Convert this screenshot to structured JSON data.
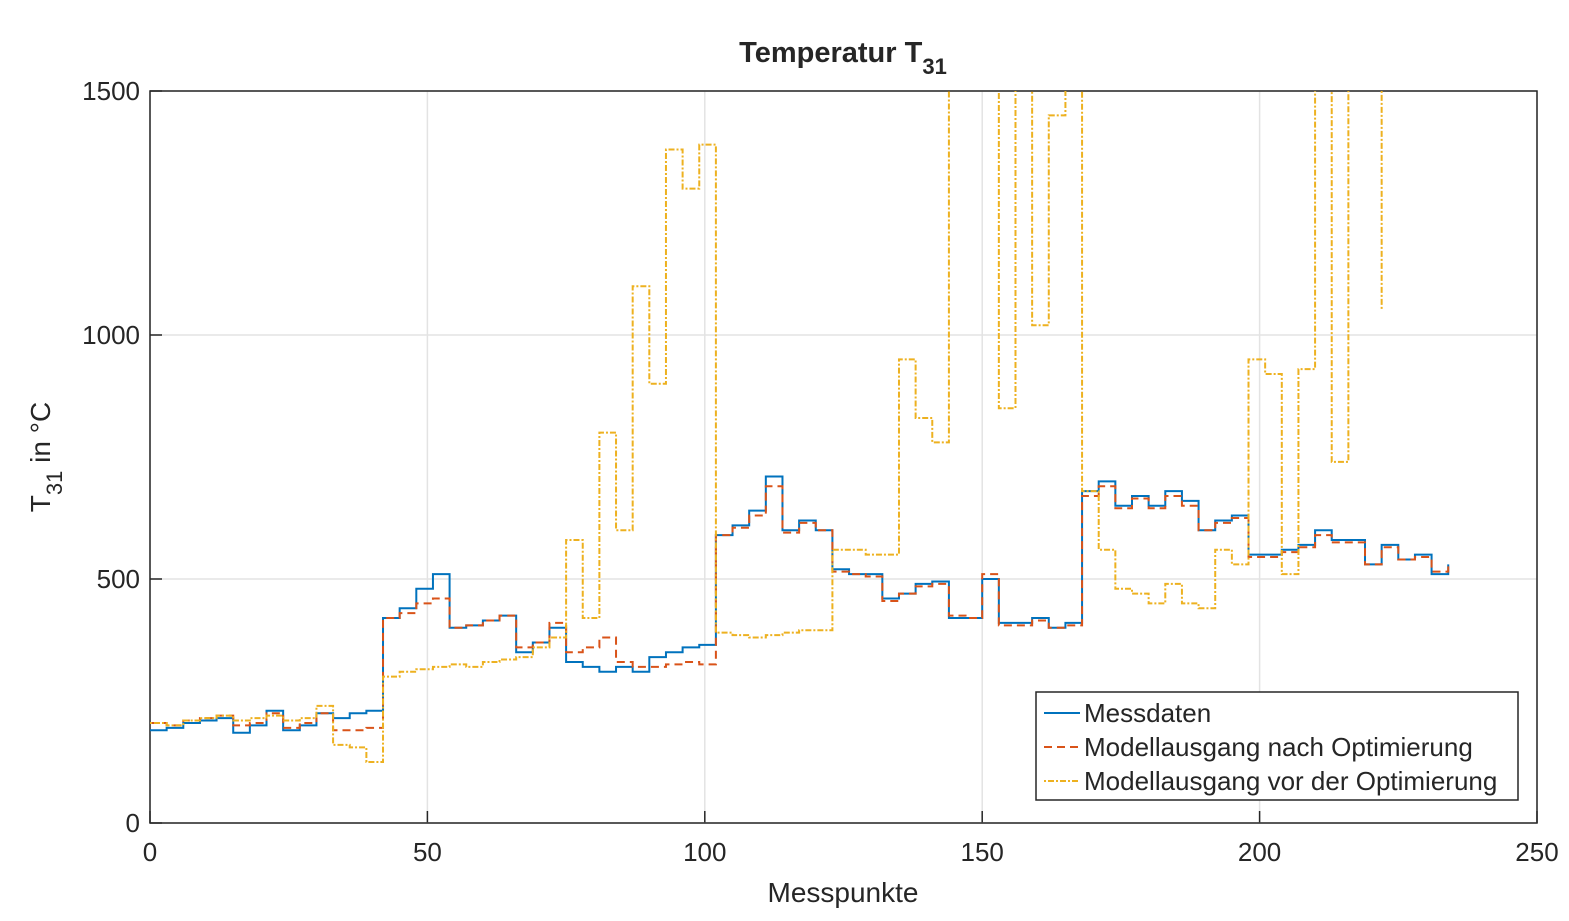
{
  "chart_data": {
    "type": "line",
    "step": true,
    "title": "Temperatur T",
    "title_subscript": "31",
    "ylabel": "T",
    "ylabel_subscript": "31",
    "ylabel_suffix": " in °C",
    "xlabel": "Messpunkte",
    "xlim": [
      0,
      250
    ],
    "xticks": [
      0,
      50,
      100,
      150,
      200,
      250
    ],
    "ylim": [
      0,
      1500
    ],
    "yticks": [
      0,
      500,
      1000,
      1500
    ],
    "grid": true,
    "legend": "lower right",
    "x": [
      0,
      3,
      6,
      9,
      12,
      15,
      18,
      21,
      24,
      27,
      30,
      33,
      36,
      39,
      42,
      45,
      48,
      51,
      54,
      57,
      60,
      63,
      66,
      69,
      72,
      75,
      78,
      81,
      84,
      87,
      90,
      93,
      96,
      99,
      102,
      105,
      108,
      111,
      114,
      117,
      120,
      123,
      126,
      129,
      132,
      135,
      138,
      141,
      144,
      147,
      150,
      153,
      156,
      159,
      162,
      165,
      168,
      171,
      174,
      177,
      180,
      183,
      186,
      189,
      192,
      195,
      198,
      201,
      204,
      207,
      210,
      213,
      216,
      219,
      222,
      225,
      228,
      231,
      234
    ],
    "series": [
      {
        "name": "Messdaten",
        "color": "#0072bd",
        "dash": "none",
        "values": [
          190,
          195,
          205,
          210,
          215,
          185,
          200,
          230,
          190,
          200,
          225,
          215,
          225,
          230,
          420,
          440,
          480,
          510,
          400,
          405,
          415,
          425,
          350,
          370,
          400,
          330,
          320,
          310,
          320,
          310,
          340,
          350,
          360,
          365,
          590,
          610,
          640,
          710,
          600,
          620,
          600,
          520,
          510,
          510,
          460,
          470,
          490,
          495,
          420,
          420,
          500,
          410,
          410,
          420,
          400,
          410,
          680,
          700,
          650,
          670,
          650,
          680,
          660,
          600,
          620,
          630,
          550,
          550,
          560,
          570,
          600,
          580,
          580,
          530,
          570,
          540,
          550,
          510,
          530
        ]
      },
      {
        "name": "Modellausgang nach Optimierung",
        "color": "#d95319",
        "dash": "8 5",
        "values": [
          205,
          200,
          210,
          215,
          220,
          200,
          205,
          225,
          195,
          205,
          225,
          190,
          190,
          195,
          420,
          430,
          450,
          460,
          400,
          405,
          415,
          425,
          360,
          370,
          410,
          350,
          360,
          380,
          330,
          320,
          320,
          325,
          330,
          325,
          590,
          605,
          630,
          690,
          595,
          615,
          600,
          515,
          510,
          505,
          455,
          470,
          485,
          490,
          425,
          420,
          510,
          405,
          405,
          415,
          400,
          405,
          670,
          690,
          645,
          665,
          645,
          670,
          650,
          600,
          615,
          625,
          545,
          545,
          555,
          565,
          590,
          575,
          575,
          530,
          565,
          540,
          545,
          515,
          535
        ]
      },
      {
        "name": "Modellausgang vor der Optimierung",
        "color": "#edb120",
        "dash": "2 2 6 2",
        "values": [
          205,
          200,
          210,
          215,
          220,
          210,
          215,
          220,
          210,
          215,
          240,
          160,
          155,
          125,
          300,
          310,
          315,
          320,
          325,
          320,
          330,
          335,
          340,
          360,
          380,
          580,
          420,
          800,
          600,
          1100,
          900,
          1380,
          1300,
          1390,
          390,
          385,
          380,
          385,
          390,
          395,
          395,
          560,
          560,
          550,
          550,
          950,
          830,
          780,
          1600,
          1600,
          1600,
          850,
          1600,
          1020,
          1450,
          1600,
          680,
          560,
          480,
          470,
          450,
          490,
          450,
          440,
          560,
          530,
          950,
          920,
          510,
          930,
          1600,
          740,
          1600,
          1600,
          1050,
          null,
          null,
          null,
          null
        ]
      }
    ]
  }
}
